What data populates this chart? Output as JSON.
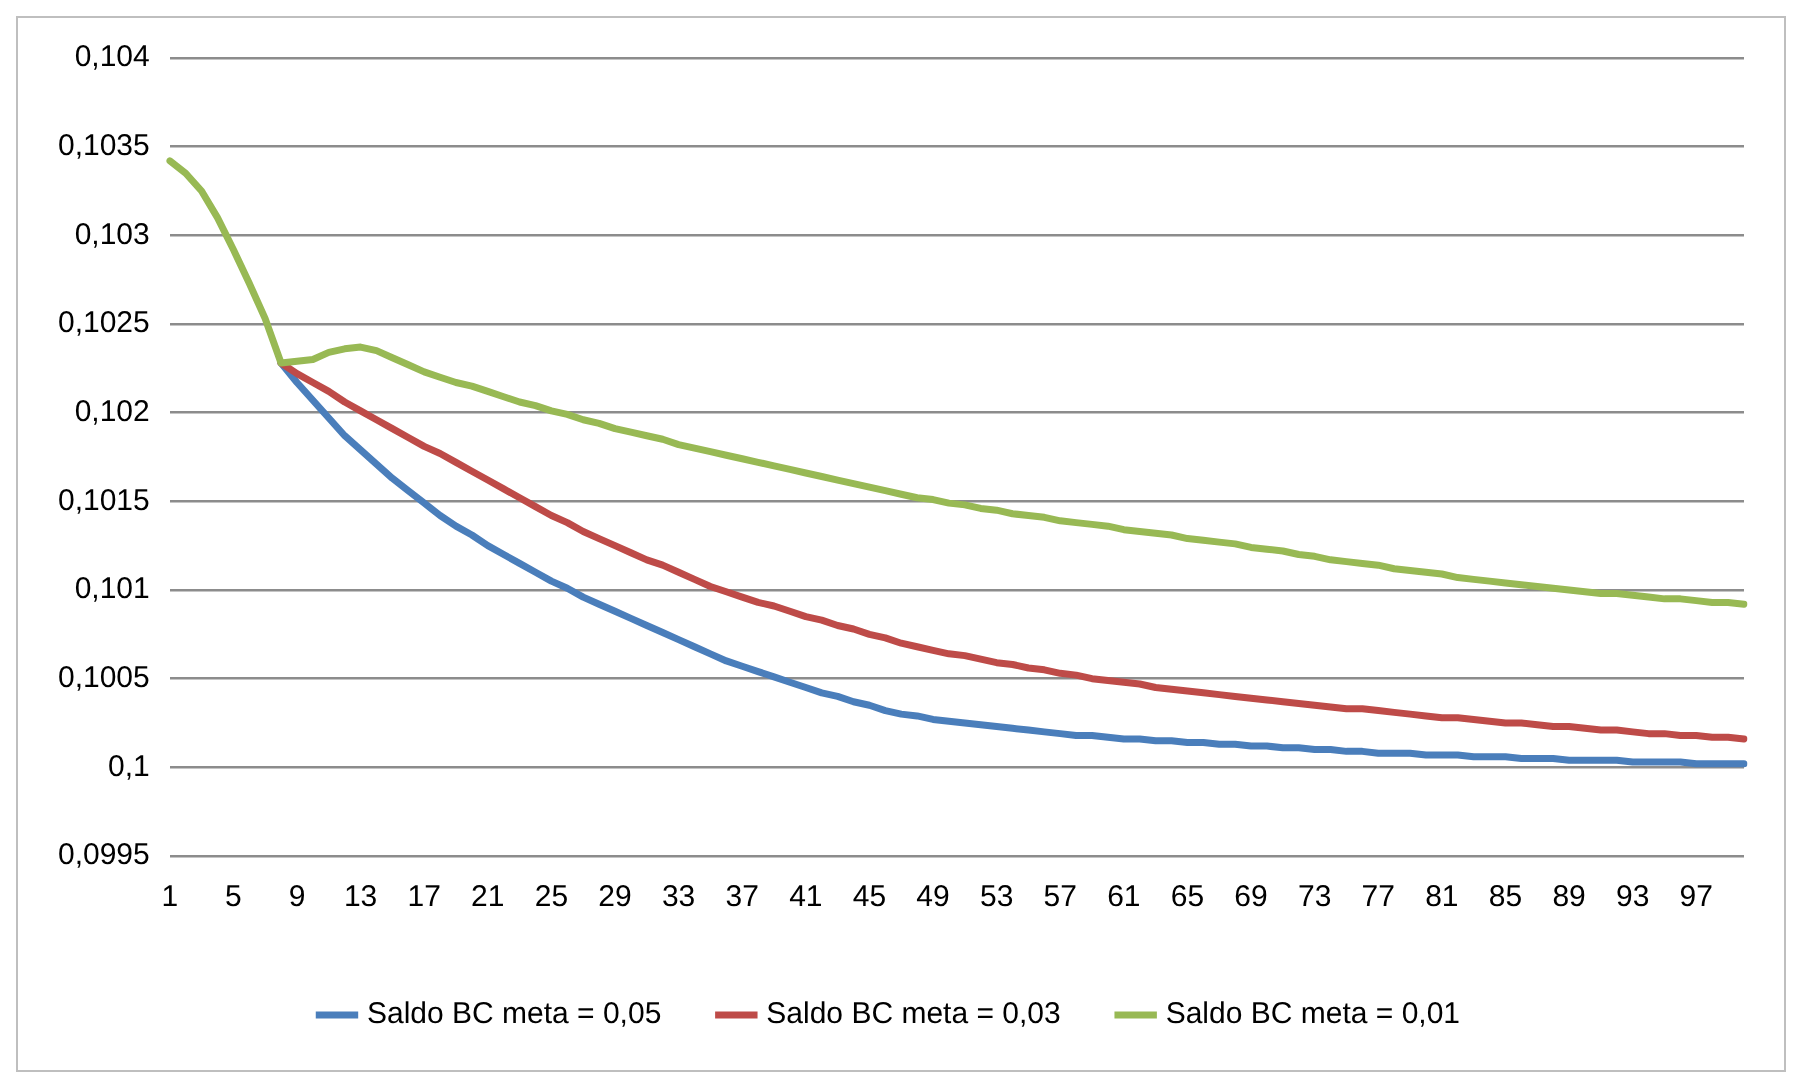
{
  "chart_data": {
    "type": "line",
    "categories": [
      "1",
      null,
      null,
      null,
      "5",
      null,
      null,
      null,
      "9",
      null,
      null,
      null,
      "13",
      null,
      null,
      null,
      "17",
      null,
      null,
      null,
      "21",
      null,
      null,
      null,
      "25",
      null,
      null,
      null,
      "29",
      null,
      null,
      null,
      "33",
      null,
      null,
      null,
      "37",
      null,
      null,
      null,
      "41",
      null,
      null,
      null,
      "45",
      null,
      null,
      null,
      "49",
      null,
      null,
      null,
      "53",
      null,
      null,
      null,
      "57",
      null,
      null,
      null,
      "61",
      null,
      null,
      null,
      "65",
      null,
      null,
      null,
      "69",
      null,
      null,
      null,
      "73",
      null,
      null,
      null,
      "77",
      null,
      null,
      null,
      "81",
      null,
      null,
      null,
      "85",
      null,
      null,
      null,
      "89",
      null,
      null,
      null,
      "93",
      null,
      null,
      null,
      "97",
      null,
      null,
      null
    ],
    "series": [
      {
        "name": "Saldo BC meta = 0,05",
        "color": "#4a7ebb",
        "values": [
          null,
          null,
          null,
          null,
          null,
          null,
          null,
          0.10228,
          0.10217,
          0.10207,
          0.10197,
          0.10187,
          0.10179,
          0.10171,
          0.10163,
          0.10156,
          0.10149,
          0.10142,
          0.10136,
          0.10131,
          0.10125,
          0.1012,
          0.10115,
          0.1011,
          0.10105,
          0.10101,
          0.10096,
          0.10092,
          0.10088,
          0.10084,
          0.1008,
          0.10076,
          0.10072,
          0.10068,
          0.10064,
          0.1006,
          0.10057,
          0.10054,
          0.10051,
          0.10048,
          0.10045,
          0.10042,
          0.1004,
          0.10037,
          0.10035,
          0.10032,
          0.1003,
          0.10029,
          0.10027,
          0.10026,
          0.10025,
          0.10024,
          0.10023,
          0.10022,
          0.10021,
          0.1002,
          0.10019,
          0.10018,
          0.10018,
          0.10017,
          0.10016,
          0.10016,
          0.10015,
          0.10015,
          0.10014,
          0.10014,
          0.10013,
          0.10013,
          0.10012,
          0.10012,
          0.10011,
          0.10011,
          0.1001,
          0.1001,
          0.10009,
          0.10009,
          0.10008,
          0.10008,
          0.10008,
          0.10007,
          0.10007,
          0.10007,
          0.10006,
          0.10006,
          0.10006,
          0.10005,
          0.10005,
          0.10005,
          0.10004,
          0.10004,
          0.10004,
          0.10004,
          0.10003,
          0.10003,
          0.10003,
          0.10003,
          0.10002,
          0.10002,
          0.10002,
          0.10002
        ]
      },
      {
        "name": "Saldo BC meta = 0,03",
        "color": "#be4b48",
        "values": [
          null,
          null,
          null,
          null,
          null,
          null,
          null,
          0.10228,
          0.10222,
          0.10217,
          0.10212,
          0.10206,
          0.10201,
          0.10196,
          0.10191,
          0.10186,
          0.10181,
          0.10177,
          0.10172,
          0.10167,
          0.10162,
          0.10157,
          0.10152,
          0.10147,
          0.10142,
          0.10138,
          0.10133,
          0.10129,
          0.10125,
          0.10121,
          0.10117,
          0.10114,
          0.1011,
          0.10106,
          0.10102,
          0.10099,
          0.10096,
          0.10093,
          0.10091,
          0.10088,
          0.10085,
          0.10083,
          0.1008,
          0.10078,
          0.10075,
          0.10073,
          0.1007,
          0.10068,
          0.10066,
          0.10064,
          0.10063,
          0.10061,
          0.10059,
          0.10058,
          0.10056,
          0.10055,
          0.10053,
          0.10052,
          0.1005,
          0.10049,
          0.10048,
          0.10047,
          0.10045,
          0.10044,
          0.10043,
          0.10042,
          0.10041,
          0.1004,
          0.10039,
          0.10038,
          0.10037,
          0.10036,
          0.10035,
          0.10034,
          0.10033,
          0.10033,
          0.10032,
          0.10031,
          0.1003,
          0.10029,
          0.10028,
          0.10028,
          0.10027,
          0.10026,
          0.10025,
          0.10025,
          0.10024,
          0.10023,
          0.10023,
          0.10022,
          0.10021,
          0.10021,
          0.1002,
          0.10019,
          0.10019,
          0.10018,
          0.10018,
          0.10017,
          0.10017,
          0.10016
        ]
      },
      {
        "name": "Saldo BC meta = 0,01",
        "color": "#98b954",
        "values": [
          0.10342,
          0.10335,
          0.10325,
          0.1031,
          0.10292,
          0.10273,
          0.10253,
          0.10228,
          0.10229,
          0.1023,
          0.10234,
          0.10236,
          0.10237,
          0.10235,
          0.10231,
          0.10227,
          0.10223,
          0.1022,
          0.10217,
          0.10215,
          0.10212,
          0.10209,
          0.10206,
          0.10204,
          0.10201,
          0.10199,
          0.10196,
          0.10194,
          0.10191,
          0.10189,
          0.10187,
          0.10185,
          0.10182,
          0.1018,
          0.10178,
          0.10176,
          0.10174,
          0.10172,
          0.1017,
          0.10168,
          0.10166,
          0.10164,
          0.10162,
          0.1016,
          0.10158,
          0.10156,
          0.10154,
          0.10152,
          0.10151,
          0.10149,
          0.10148,
          0.10146,
          0.10145,
          0.10143,
          0.10142,
          0.10141,
          0.10139,
          0.10138,
          0.10137,
          0.10136,
          0.10134,
          0.10133,
          0.10132,
          0.10131,
          0.10129,
          0.10128,
          0.10127,
          0.10126,
          0.10124,
          0.10123,
          0.10122,
          0.1012,
          0.10119,
          0.10117,
          0.10116,
          0.10115,
          0.10114,
          0.10112,
          0.10111,
          0.1011,
          0.10109,
          0.10107,
          0.10106,
          0.10105,
          0.10104,
          0.10103,
          0.10102,
          0.10101,
          0.101,
          0.10099,
          0.10098,
          0.10098,
          0.10097,
          0.10096,
          0.10095,
          0.10095,
          0.10094,
          0.10093,
          0.10093,
          0.10092
        ]
      }
    ],
    "ylim": [
      0.0995,
      0.104
    ],
    "yticks": [
      {
        "value": 0.0995,
        "label": "0,0995"
      },
      {
        "value": 0.1,
        "label": "0,1"
      },
      {
        "value": 0.1005,
        "label": "0,1005"
      },
      {
        "value": 0.101,
        "label": "0,101"
      },
      {
        "value": 0.1015,
        "label": "0,1015"
      },
      {
        "value": 0.102,
        "label": "0,102"
      },
      {
        "value": 0.1025,
        "label": "0,1025"
      },
      {
        "value": 0.103,
        "label": "0,103"
      },
      {
        "value": 0.1035,
        "label": "0,1035"
      },
      {
        "value": 0.104,
        "label": "0,104"
      }
    ],
    "grid": "y",
    "legend": "bottom",
    "marker": "none",
    "line_style": "solid"
  }
}
